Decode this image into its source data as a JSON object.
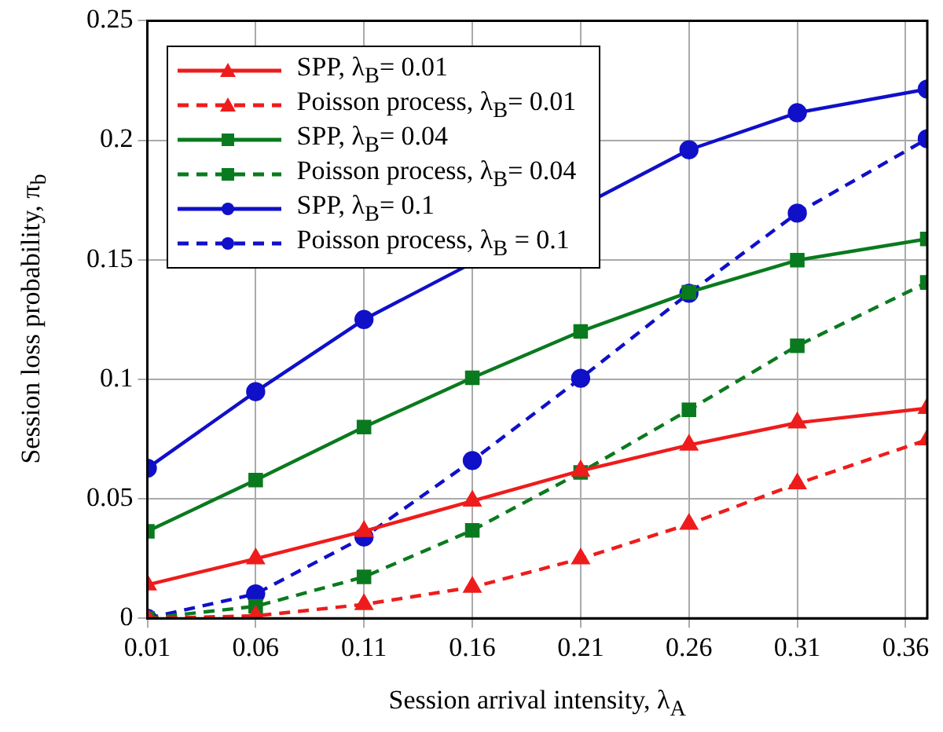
{
  "chart_data": {
    "type": "line",
    "xlabel": "Session arrival intensity, λ$_{A}$",
    "ylabel": "Session loss probability, π$_{b}$",
    "x": [
      0.01,
      0.06,
      0.11,
      0.16,
      0.21,
      0.26,
      0.31,
      0.37
    ],
    "xlim": [
      0.01,
      0.37
    ],
    "xticks": [
      0.01,
      0.06,
      0.11,
      0.16,
      0.21,
      0.26,
      0.31,
      0.36
    ],
    "ylim": [
      0,
      0.25
    ],
    "yticks": [
      0,
      0.05,
      0.1,
      0.15,
      0.2,
      0.25
    ],
    "grid": true,
    "legend": "top left",
    "series": [
      {
        "name": "SPP, λ$_{B}$= 0.01",
        "color": "#ee1c1c",
        "marker": "triangle",
        "line_style": "solid",
        "values": [
          0.014,
          0.0249,
          0.0364,
          0.0491,
          0.0617,
          0.0725,
          0.0818,
          0.0879
        ]
      },
      {
        "name": "Poisson process, λ$_{B}$= 0.01",
        "color": "#ee1c1c",
        "marker": "triangle",
        "line_style": "dashed",
        "values": [
          0,
          0.001,
          0.0058,
          0.013,
          0.0249,
          0.0394,
          0.0563,
          0.0747
        ]
      },
      {
        "name": "SPP, λ$_{B}$= 0.04",
        "color": "#0a7a1e",
        "marker": "square",
        "line_style": "solid",
        "values": [
          0.0364,
          0.0578,
          0.08,
          0.1006,
          0.12,
          0.1364,
          0.1498,
          0.1587
        ]
      },
      {
        "name": "Poisson process, λ$_{B}$= 0.04",
        "color": "#0a7a1e",
        "marker": "square",
        "line_style": "dashed",
        "values": [
          0,
          0.005,
          0.0173,
          0.0368,
          0.061,
          0.0872,
          0.114,
          0.1405
        ]
      },
      {
        "name": "SPP,  λ$_{B}$= 0.1",
        "color": "#1010c8",
        "marker": "circle",
        "line_style": "solid",
        "values": [
          0.0628,
          0.0948,
          0.125,
          null,
          null,
          0.196,
          0.2115,
          0.2214
        ]
      },
      {
        "name": "Poisson process, λ$_{B}$ = 0.1",
        "color": "#1010c8",
        "marker": "circle",
        "line_style": "dashed",
        "values": [
          0,
          0.0102,
          0.034,
          0.066,
          0.1004,
          0.136,
          0.1695,
          0.2006
        ]
      }
    ]
  }
}
